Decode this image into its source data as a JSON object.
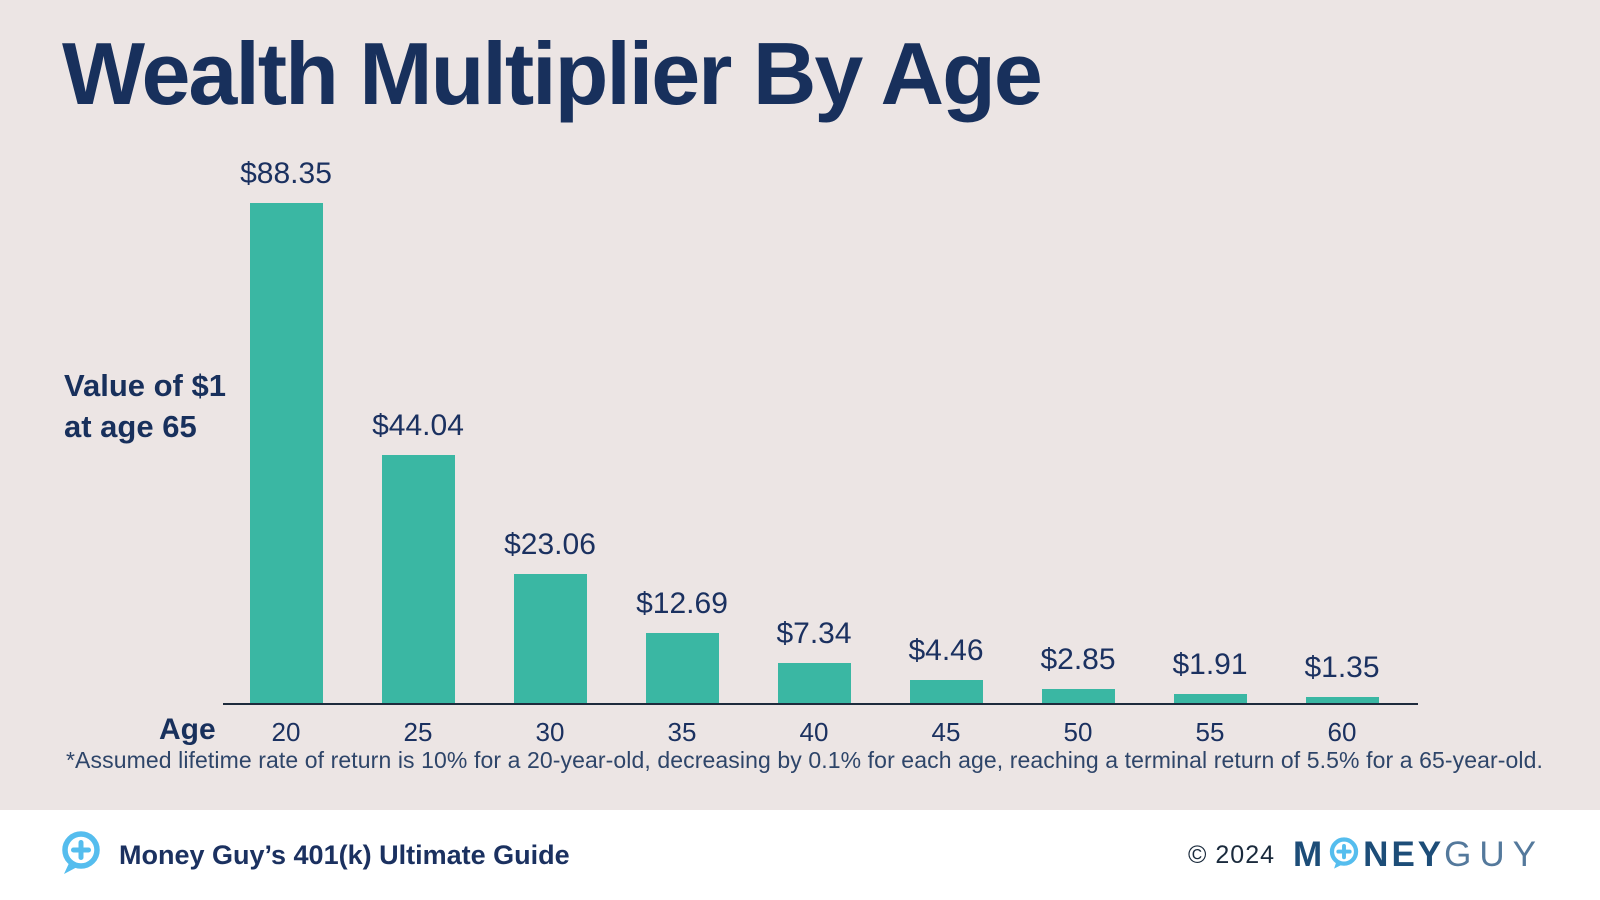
{
  "chart_data": {
    "type": "bar",
    "title": "Wealth Multiplier By Age",
    "ylabel": "Value of $1\nat age 65",
    "xlabel": "Age",
    "categories": [
      "20",
      "25",
      "30",
      "35",
      "40",
      "45",
      "50",
      "55",
      "60"
    ],
    "values": [
      88.35,
      44.04,
      23.06,
      12.69,
      7.34,
      4.46,
      2.85,
      1.91,
      1.35
    ],
    "labels": [
      "$88.35",
      "$44.04",
      "$23.06",
      "$12.69",
      "$7.34",
      "$4.46",
      "$2.85",
      "$1.91",
      "$1.35"
    ],
    "ylim": [
      0,
      90
    ],
    "grid": false,
    "legend": false,
    "bar_color": "#3ab7a3",
    "annotation": "*Assumed lifetime rate of return is 10% for a 20-year-old, decreasing by 0.1% for each age, reaching a terminal return of 5.5% for a 65-year-old."
  },
  "footer": {
    "left_label": "Money Guy’s 401(k) Ultimate Guide",
    "copyright": "© 2024",
    "logo": {
      "part1": "M",
      "part2": "NEY",
      "part3": "GUY"
    }
  },
  "colors": {
    "background": "#ece5e4",
    "bar": "#3ab7a3",
    "text_navy": "#18305c",
    "footnote": "#2e4569",
    "axis": "#1e2b3c",
    "footer_bg": "#ffffff",
    "icon_blue": "#55bdee",
    "logo_dark": "#1d4d78",
    "logo_light": "#54799c"
  }
}
